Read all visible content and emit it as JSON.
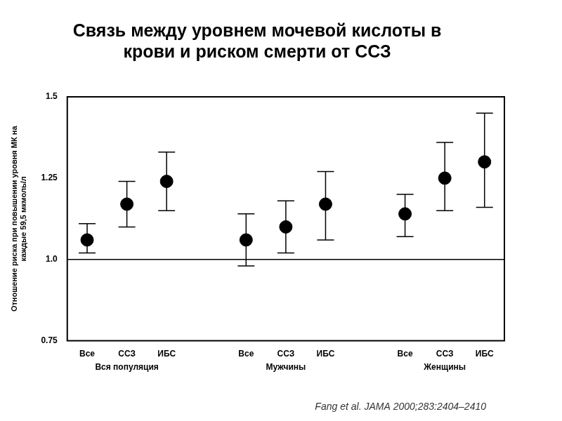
{
  "chart_data": {
    "type": "scatter",
    "title": [
      "Связь между уровнем мочевой кислоты в",
      "крови и риском смерти от ССЗ"
    ],
    "y_label": [
      "Отношение риска при повышении уровня МК на",
      "каждые 59,5 мкмоль/л"
    ],
    "source": "Fang et al. JAMA 2000;283:2404–2410",
    "color": "#000000",
    "groups": [
      {
        "name": "Вся популяция",
        "categories": [
          "Все",
          "ССЗ",
          "ИБС"
        ],
        "values": [
          1.06,
          1.17,
          1.24
        ],
        "error_low": [
          1.02,
          1.1,
          1.15
        ],
        "error_high": [
          1.11,
          1.24,
          1.33
        ]
      },
      {
        "name": "Мужчины",
        "categories": [
          "Все",
          "ССЗ",
          "ИБС"
        ],
        "values": [
          1.06,
          1.1,
          1.17
        ],
        "error_low": [
          0.98,
          1.02,
          1.06
        ],
        "error_high": [
          1.14,
          1.18,
          1.27
        ]
      },
      {
        "name": "Женщины",
        "categories": [
          "Все",
          "ССЗ",
          "ИБС"
        ],
        "values": [
          1.14,
          1.25,
          1.3
        ],
        "error_low": [
          1.07,
          1.15,
          1.16
        ],
        "error_high": [
          1.2,
          1.36,
          1.45
        ]
      }
    ],
    "ylim": [
      0.75,
      1.5
    ],
    "yticks": [
      0.75,
      {
        "value": 1,
        "label": "1.0"
      },
      1.25,
      1.5
    ],
    "reference_line": 1,
    "grid": false
  }
}
